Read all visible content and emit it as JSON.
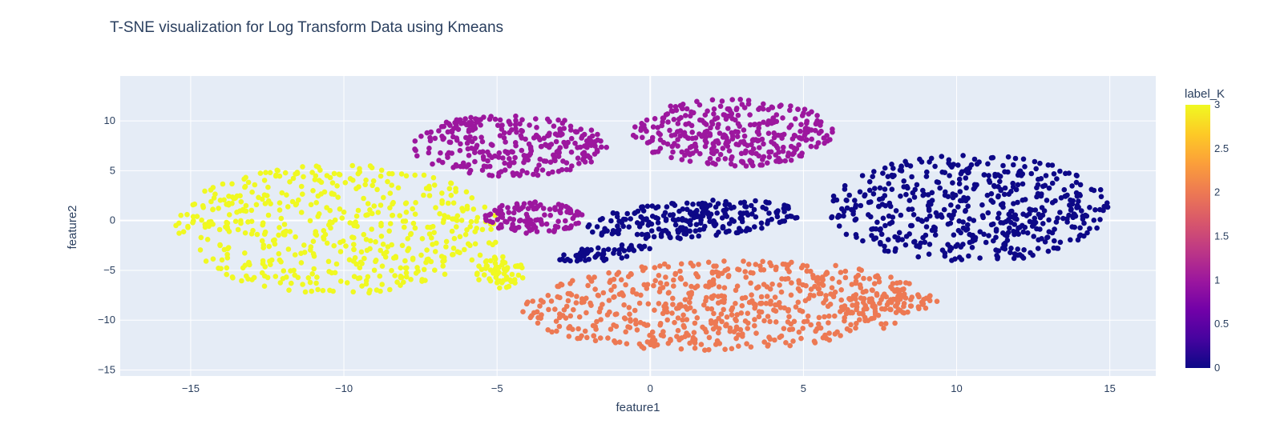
{
  "chart_data": {
    "type": "scatter",
    "title": "T-SNE visualization for Log Transform Data using Kmeans",
    "xlabel": "feature1",
    "ylabel": "feature2",
    "xlim": [
      -17.3,
      16.5
    ],
    "ylim": [
      -15.6,
      14.5
    ],
    "x_ticks": [
      -15,
      -10,
      -5,
      0,
      5,
      10,
      15
    ],
    "x_tick_labels": [
      "−15",
      "−10",
      "−5",
      "0",
      "5",
      "10",
      "15"
    ],
    "y_ticks": [
      -15,
      -10,
      -5,
      0,
      5,
      10
    ],
    "y_tick_labels": [
      "−15",
      "−10",
      "−5",
      "0",
      "5",
      "10"
    ],
    "grid": true,
    "colorbar": {
      "title": "label_K",
      "range": [
        0,
        3
      ],
      "ticks": [
        0,
        0.5,
        1,
        1.5,
        2,
        2.5,
        3
      ],
      "tick_labels": [
        "0",
        "0.5",
        "1",
        "1.5",
        "2",
        "2.5",
        "3"
      ],
      "colorscale": [
        "#0d0887",
        "#46039f",
        "#7201a8",
        "#9c179e",
        "#bd3786",
        "#d8576b",
        "#ed7953",
        "#fb9f3a",
        "#fdca26",
        "#f0f921"
      ]
    },
    "clusters": [
      {
        "label_K": 3,
        "color": "#f0f921",
        "cx": -10.2,
        "cy": -0.8,
        "rx": 5.3,
        "ry": 6.6,
        "angle": 0,
        "count": 520
      },
      {
        "label_K": 3,
        "color": "#f0f921",
        "cx": -4.9,
        "cy": -5.2,
        "rx": 0.8,
        "ry": 1.6,
        "angle": 0,
        "count": 60
      },
      {
        "label_K": 1,
        "color": "#9c179e",
        "cx": -4.6,
        "cy": 7.5,
        "rx": 3.2,
        "ry": 3.1,
        "angle": -5,
        "count": 300
      },
      {
        "label_K": 1,
        "color": "#9c179e",
        "cx": 2.7,
        "cy": 8.8,
        "rx": 3.3,
        "ry": 3.4,
        "angle": 5,
        "count": 340
      },
      {
        "label_K": 1,
        "color": "#9c179e",
        "cx": -3.8,
        "cy": 0.3,
        "rx": 1.6,
        "ry": 1.6,
        "angle": -10,
        "count": 120
      },
      {
        "label_K": 0,
        "color": "#0d0887",
        "cx": 10.4,
        "cy": 1.2,
        "rx": 4.6,
        "ry": 5.4,
        "angle": 0,
        "count": 520
      },
      {
        "label_K": 0,
        "color": "#0d0887",
        "cx": 1.4,
        "cy": 0.1,
        "rx": 3.6,
        "ry": 1.8,
        "angle": 15,
        "count": 240
      },
      {
        "label_K": 0,
        "color": "#0d0887",
        "cx": -1.5,
        "cy": -3.3,
        "rx": 1.6,
        "ry": 0.7,
        "angle": 20,
        "count": 60
      },
      {
        "label_K": 2,
        "color": "#ed7953",
        "cx": 2.4,
        "cy": -8.5,
        "rx": 6.6,
        "ry": 4.5,
        "angle": 8,
        "count": 620
      },
      {
        "label_K": 2,
        "color": "#ed7953",
        "cx": 8.0,
        "cy": -8.0,
        "rx": 1.5,
        "ry": 1.2,
        "angle": 0,
        "count": 60
      }
    ]
  }
}
